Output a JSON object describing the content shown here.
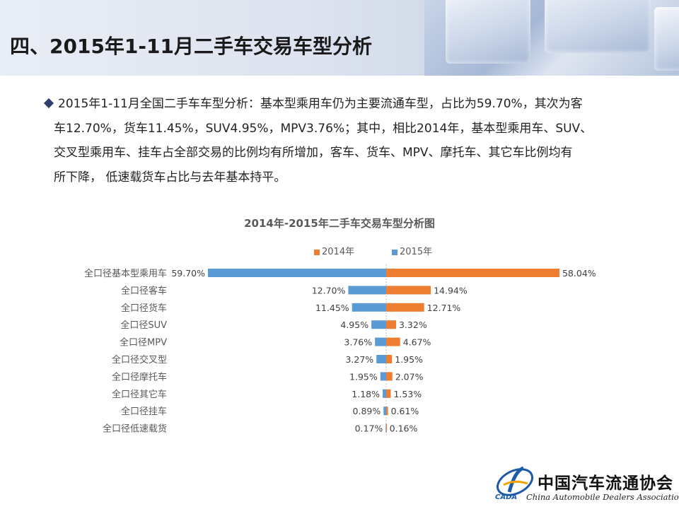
{
  "header": {
    "title": "四、2015年1-11月二手车交易车型分析"
  },
  "summary": {
    "line1": "2015年1-11月全国二手车车型分析：基本型乘用车仍为主要流通车型，占比为59.70%，其次为客",
    "line2": "车12.70%，货车11.45%，SUV4.95%，MPV3.76%；其中，相比2014年，基本型乘用车、SUV、",
    "line3": "交叉型乘用车、挂车占全部交易的比例均有所增加，客车、货车、MPV、摩托车、其它车比例均有",
    "line4": "所下降， 低速载货车占比与去年基本持平。"
  },
  "footer": {
    "org_cn": "中国汽车流通协会",
    "org_en": "China Automobile Dealers Association",
    "org_abbr": "CADA"
  },
  "colors": {
    "y2014": "#ed7d31",
    "y2015": "#5b9bd5",
    "title": "#1a1a1a",
    "bullet": "#2e3f6b"
  },
  "icons": {
    "bullet": "diamond-icon",
    "logo": "cada-logo-icon"
  },
  "chart_data": {
    "type": "bar",
    "orientation": "horizontal-diverging",
    "title": "2014年-2015年二手车交易车型分析图",
    "legend_position": "top-center",
    "categories": [
      "全口径基本型乘用车",
      "全口径客车",
      "全口径货车",
      "全口径SUV",
      "全口径MPV",
      "全口径交叉型",
      "全口径摩托车",
      "全口径其它车",
      "全口径挂车",
      "全口径低速载货"
    ],
    "series": [
      {
        "name": "2014年",
        "side": "right",
        "values": [
          58.04,
          14.94,
          12.71,
          3.32,
          4.67,
          1.95,
          2.07,
          1.53,
          0.61,
          0.16
        ],
        "labels": [
          "58.04%",
          "14.94%",
          "12.71%",
          "3.32%",
          "4.67%",
          "1.95%",
          "2.07%",
          "1.53%",
          "0.61%",
          "0.16%"
        ]
      },
      {
        "name": "2015年",
        "side": "left",
        "values": [
          59.7,
          12.7,
          11.45,
          4.95,
          3.76,
          3.27,
          1.95,
          1.18,
          0.89,
          0.17
        ],
        "labels": [
          "59.70%",
          "12.70%",
          "11.45%",
          "4.95%",
          "3.76%",
          "3.27%",
          "1.95%",
          "1.18%",
          "0.89%",
          "0.17%"
        ]
      }
    ],
    "unit": "%",
    "grid": false
  }
}
